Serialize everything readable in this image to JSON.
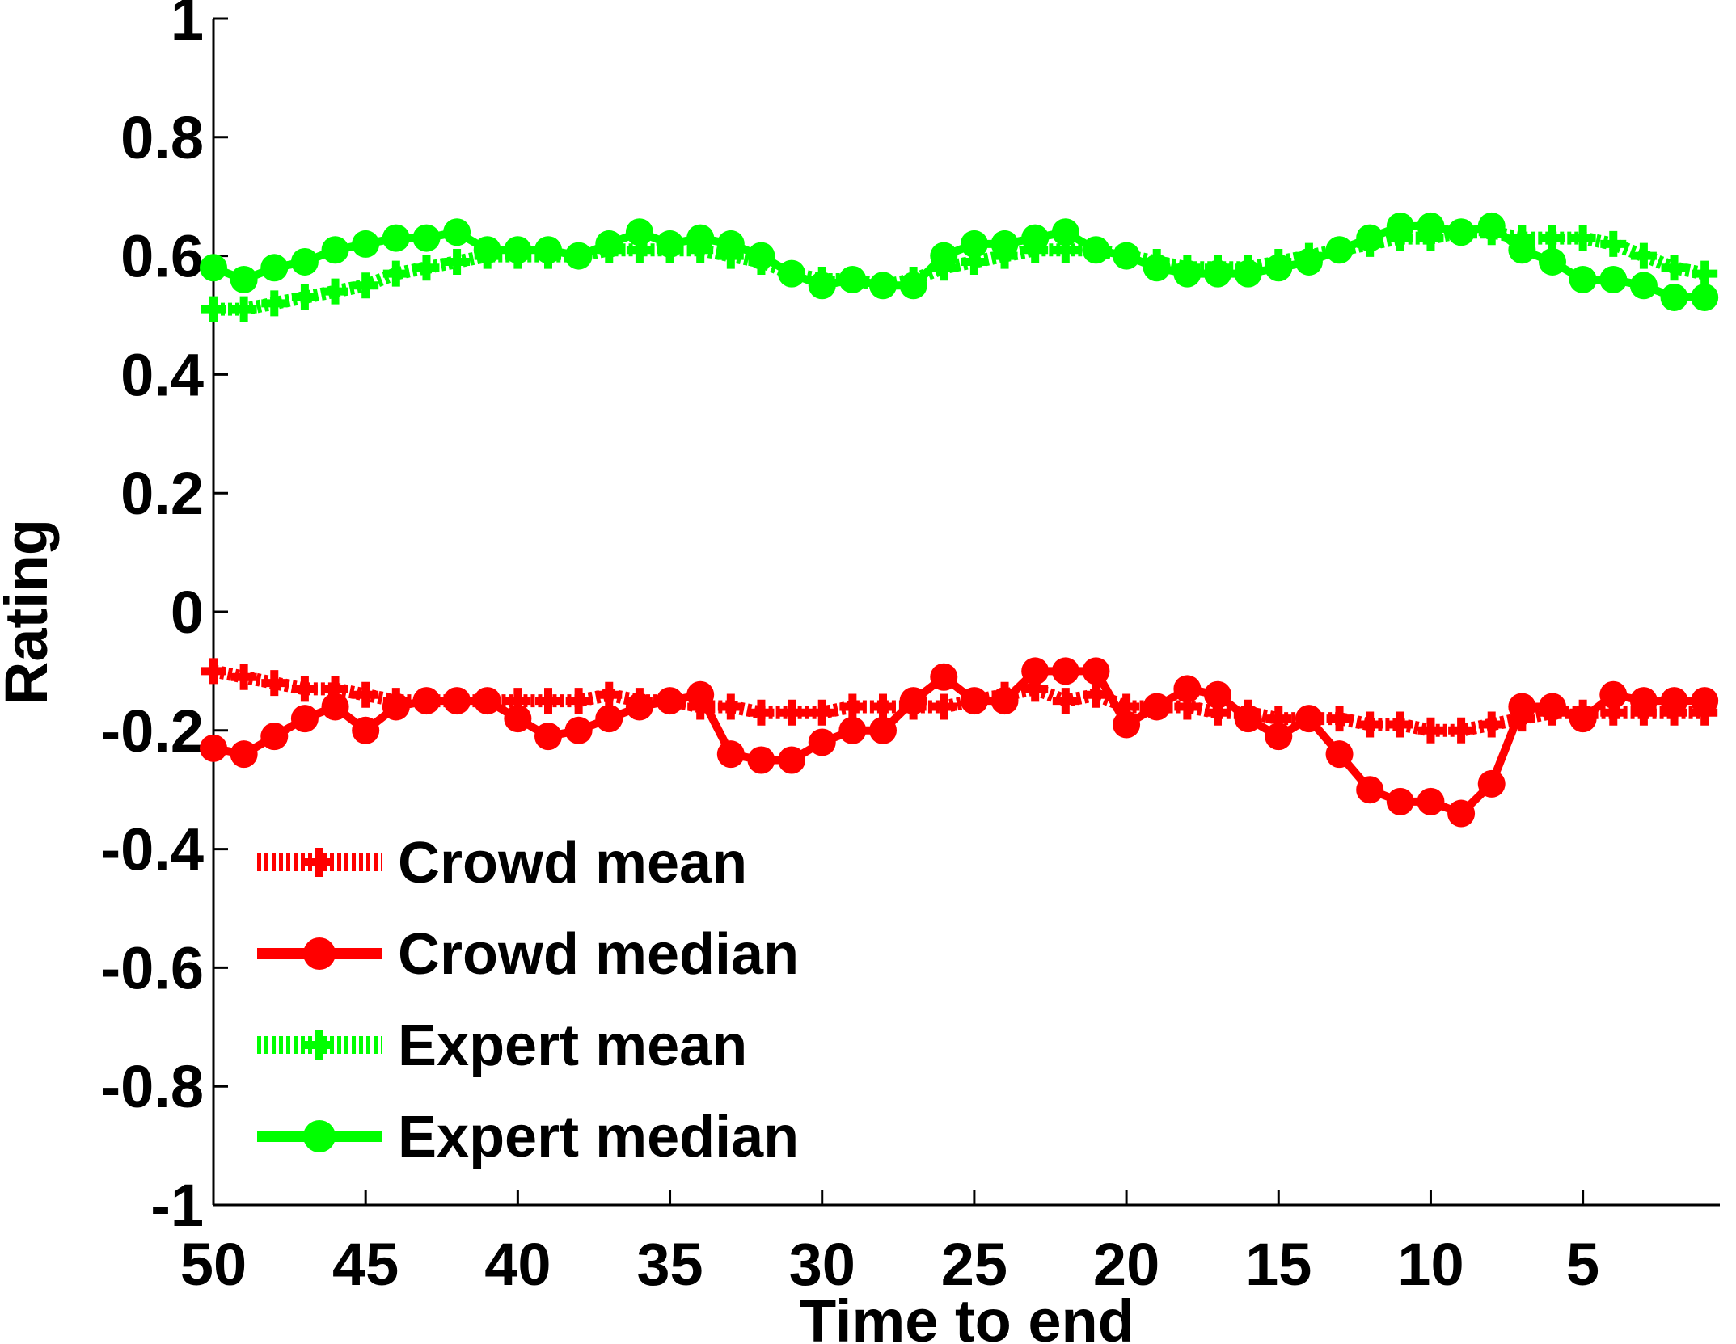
{
  "chart_data": {
    "type": "line",
    "title": "",
    "xlabel": "Time to end",
    "ylabel": "Rating",
    "xlim": [
      50,
      1
    ],
    "ylim": [
      -1,
      1
    ],
    "x_reversed": true,
    "grid": false,
    "legend_position": "bottom-left",
    "x_ticks": [
      50,
      45,
      40,
      35,
      30,
      25,
      20,
      15,
      10,
      5
    ],
    "x_tick_labels": [
      "50",
      "45",
      "40",
      "35",
      "30",
      "25",
      "20",
      "15",
      "10",
      "5"
    ],
    "y_ticks": [
      1,
      0.8,
      0.6,
      0.4,
      0.2,
      0,
      -0.2,
      -0.4,
      -0.6,
      -0.8,
      -1
    ],
    "y_tick_labels": [
      "1",
      "0.8",
      "0.6",
      "0.4",
      "0.2",
      "0",
      "-0.2",
      "-0.4",
      "-0.6",
      "-0.8",
      "-1"
    ],
    "x": [
      50,
      49,
      48,
      47,
      46,
      45,
      44,
      43,
      42,
      41,
      40,
      39,
      38,
      37,
      36,
      35,
      34,
      33,
      32,
      31,
      30,
      29,
      28,
      27,
      26,
      25,
      24,
      23,
      22,
      21,
      20,
      19,
      18,
      17,
      16,
      15,
      14,
      13,
      12,
      11,
      10,
      9,
      8,
      7,
      6,
      5,
      4,
      3,
      2,
      1
    ],
    "series": [
      {
        "name": "Crowd mean",
        "color": "#ff0000",
        "style": "dotted",
        "marker": "plus",
        "values": [
          -0.1,
          -0.11,
          -0.12,
          -0.13,
          -0.13,
          -0.14,
          -0.15,
          -0.15,
          -0.15,
          -0.15,
          -0.15,
          -0.15,
          -0.15,
          -0.14,
          -0.15,
          -0.15,
          -0.16,
          -0.16,
          -0.17,
          -0.17,
          -0.17,
          -0.16,
          -0.16,
          -0.16,
          -0.16,
          -0.15,
          -0.14,
          -0.13,
          -0.15,
          -0.14,
          -0.16,
          -0.16,
          -0.16,
          -0.17,
          -0.17,
          -0.18,
          -0.18,
          -0.18,
          -0.19,
          -0.19,
          -0.2,
          -0.2,
          -0.19,
          -0.18,
          -0.17,
          -0.17,
          -0.17,
          -0.17,
          -0.17,
          -0.17
        ]
      },
      {
        "name": "Crowd median",
        "color": "#ff0000",
        "style": "solid",
        "marker": "circle",
        "values": [
          -0.23,
          -0.24,
          -0.21,
          -0.18,
          -0.16,
          -0.2,
          -0.16,
          -0.15,
          -0.15,
          -0.15,
          -0.18,
          -0.21,
          -0.2,
          -0.18,
          -0.16,
          -0.15,
          -0.14,
          -0.24,
          -0.25,
          -0.25,
          -0.22,
          -0.2,
          -0.2,
          -0.15,
          -0.11,
          -0.15,
          -0.15,
          -0.1,
          -0.1,
          -0.1,
          -0.19,
          -0.16,
          -0.13,
          -0.14,
          -0.18,
          -0.21,
          -0.18,
          -0.24,
          -0.3,
          -0.32,
          -0.32,
          -0.34,
          -0.29,
          -0.16,
          -0.16,
          -0.18,
          -0.14,
          -0.15,
          -0.15,
          -0.15
        ]
      },
      {
        "name": "Expert mean",
        "color": "#00ff00",
        "style": "dotted",
        "marker": "plus",
        "values": [
          0.51,
          0.51,
          0.52,
          0.53,
          0.54,
          0.55,
          0.57,
          0.58,
          0.59,
          0.6,
          0.6,
          0.6,
          0.6,
          0.61,
          0.61,
          0.61,
          0.61,
          0.6,
          0.59,
          0.57,
          0.56,
          0.56,
          0.55,
          0.56,
          0.58,
          0.59,
          0.6,
          0.61,
          0.61,
          0.61,
          0.6,
          0.59,
          0.58,
          0.58,
          0.58,
          0.59,
          0.6,
          0.61,
          0.62,
          0.63,
          0.63,
          0.64,
          0.64,
          0.63,
          0.63,
          0.63,
          0.62,
          0.6,
          0.58,
          0.57
        ]
      },
      {
        "name": "Expert median",
        "color": "#00ff00",
        "style": "solid",
        "marker": "circle",
        "values": [
          0.58,
          0.56,
          0.58,
          0.59,
          0.61,
          0.62,
          0.63,
          0.63,
          0.64,
          0.61,
          0.61,
          0.61,
          0.6,
          0.62,
          0.64,
          0.62,
          0.63,
          0.62,
          0.6,
          0.57,
          0.55,
          0.56,
          0.55,
          0.55,
          0.6,
          0.62,
          0.62,
          0.63,
          0.64,
          0.61,
          0.6,
          0.58,
          0.57,
          0.57,
          0.57,
          0.58,
          0.59,
          0.61,
          0.63,
          0.65,
          0.65,
          0.64,
          0.65,
          0.61,
          0.59,
          0.56,
          0.56,
          0.55,
          0.53,
          0.53
        ]
      }
    ]
  }
}
